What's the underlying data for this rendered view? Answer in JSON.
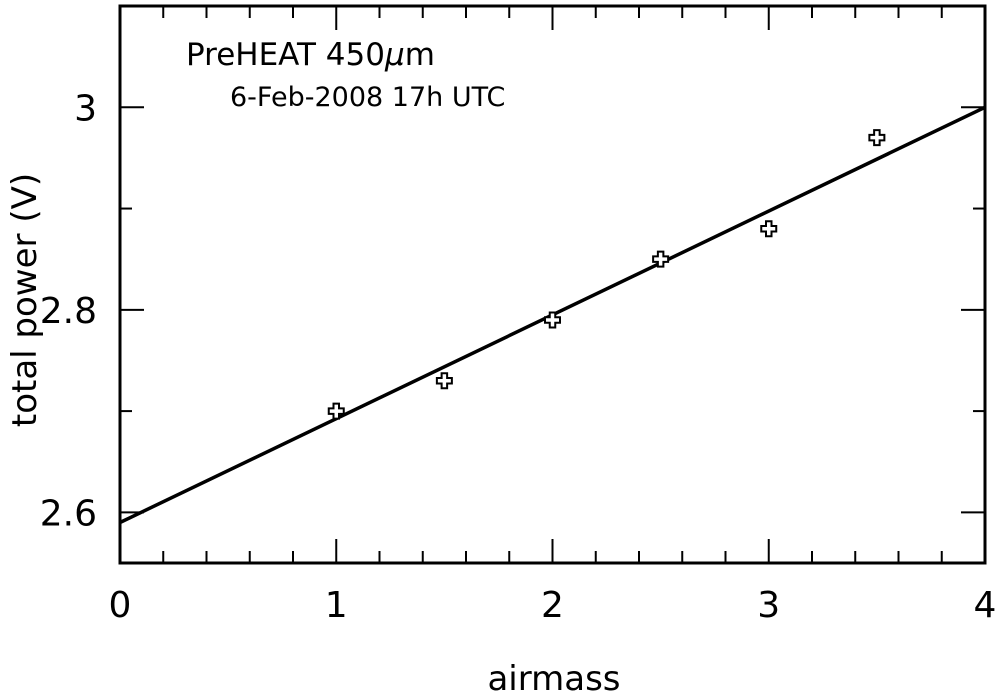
{
  "chart_data": {
    "type": "scatter",
    "title": "",
    "annotations": {
      "line1_prefix": "PreHEAT 450",
      "line1_mu": "μ",
      "line1_suffix": "m",
      "line2": "6-Feb-2008 17h UTC"
    },
    "xlabel": "airmass",
    "ylabel": "total power (V)",
    "xlim": [
      0,
      4
    ],
    "ylim": [
      2.55,
      3.1
    ],
    "x_ticks": [
      0,
      1,
      2,
      3,
      4
    ],
    "x_tick_labels": [
      "0",
      "1",
      "2",
      "3",
      "4"
    ],
    "x_minor_step": 0.2,
    "y_ticks": [
      2.6,
      2.8,
      3.0
    ],
    "y_tick_labels": [
      "2.6",
      "2.8",
      "3"
    ],
    "y_minor_step": 0.1,
    "grid": false,
    "series": [
      {
        "marker": "plus",
        "x": [
          1.0,
          1.5,
          2.0,
          2.5,
          3.0,
          3.5
        ],
        "y": [
          2.7,
          2.73,
          2.79,
          2.85,
          2.88,
          2.97
        ]
      }
    ],
    "fit_line": {
      "x": [
        0,
        4
      ],
      "y": [
        2.59,
        3.0
      ]
    }
  }
}
